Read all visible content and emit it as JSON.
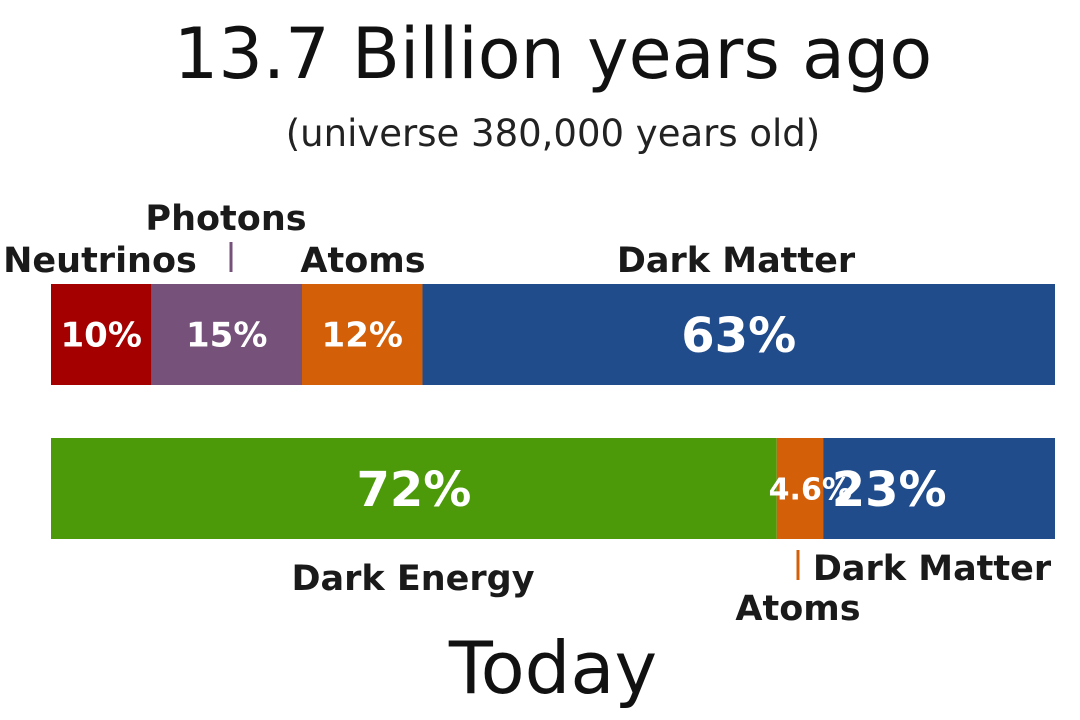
{
  "header": {
    "title": "13.7 Billion years ago",
    "subtitle": "(universe 380,000 years old)"
  },
  "footer": {
    "label": "Today"
  },
  "chart_data": [
    {
      "type": "bar",
      "stacked": true,
      "orientation": "horizontal",
      "title": "13.7 Billion years ago",
      "subtitle": "(universe 380,000 years old)",
      "unit": "%",
      "segments": [
        {
          "name": "Neutrinos",
          "value": 10,
          "label": "10%",
          "color": "#a50000"
        },
        {
          "name": "Photons",
          "value": 15,
          "label": "15%",
          "color": "#76517a"
        },
        {
          "name": "Atoms",
          "value": 12,
          "label": "12%",
          "color": "#d36008"
        },
        {
          "name": "Dark Matter",
          "value": 63,
          "label": "63%",
          "color": "#214c8c"
        }
      ]
    },
    {
      "type": "bar",
      "stacked": true,
      "orientation": "horizontal",
      "title": "Today",
      "unit": "%",
      "segments": [
        {
          "name": "Dark Energy",
          "value": 72,
          "label": "72%",
          "color": "#4c9a0a"
        },
        {
          "name": "Atoms",
          "value": 4.6,
          "label": "4.6%",
          "color": "#d36008"
        },
        {
          "name": "Dark Matter",
          "value": 23,
          "label": "23%",
          "color": "#214c8c"
        }
      ]
    }
  ]
}
